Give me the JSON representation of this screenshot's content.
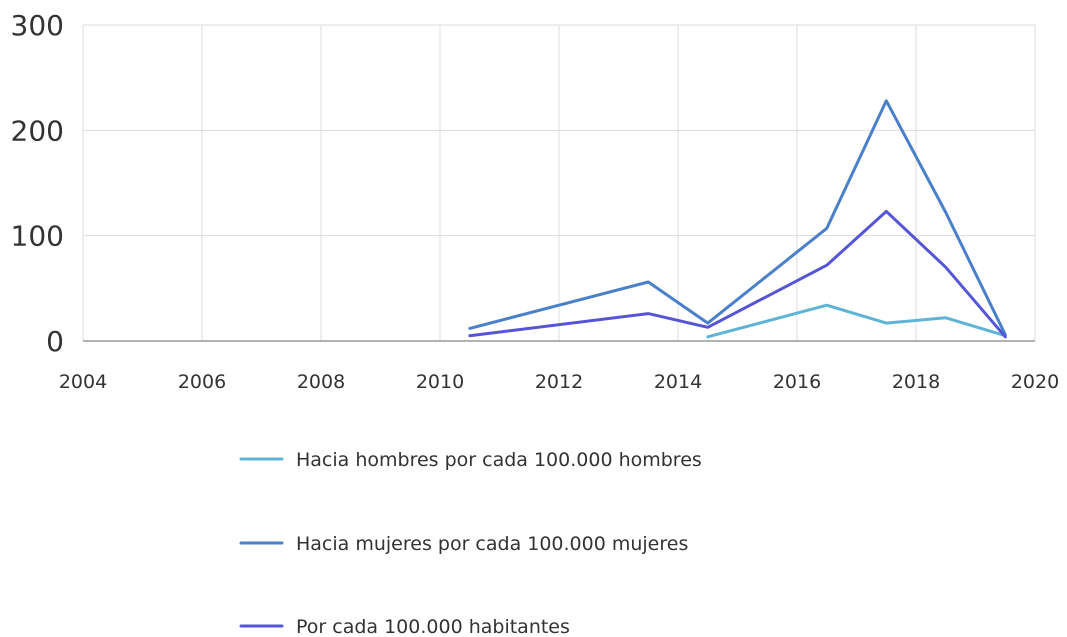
{
  "chart_data": {
    "type": "line",
    "title": "",
    "xlabel": "",
    "ylabel": "",
    "xlim": [
      2004,
      2020
    ],
    "ylim": [
      0,
      300
    ],
    "x_ticks": [
      "2004",
      "2006",
      "2008",
      "2010",
      "2012",
      "2014",
      "2016",
      "2018",
      "2020"
    ],
    "y_ticks": [
      "0",
      "100",
      "200",
      "300"
    ],
    "grid": true,
    "legend_position": "bottom",
    "series": [
      {
        "name": "Hacia hombres por cada 100.000 hombres",
        "color": "#5fb4d6",
        "points": [
          [
            2014.5,
            4
          ],
          [
            2016.5,
            34
          ],
          [
            2017.5,
            17
          ],
          [
            2018.5,
            22
          ],
          [
            2019.5,
            5
          ]
        ]
      },
      {
        "name": "Hacia mujeres por cada 100.000 mujeres",
        "color": "#4a7fc9",
        "points": [
          [
            2010.5,
            12
          ],
          [
            2013.5,
            56
          ],
          [
            2014.5,
            17
          ],
          [
            2016.5,
            107
          ],
          [
            2017.5,
            228
          ],
          [
            2018.5,
            122
          ],
          [
            2019.5,
            6
          ]
        ]
      },
      {
        "name": "Por cada 100.000 habitantes",
        "color": "#5555d6",
        "points": [
          [
            2010.5,
            5
          ],
          [
            2013.5,
            26
          ],
          [
            2014.5,
            13
          ],
          [
            2016.5,
            72
          ],
          [
            2017.5,
            123
          ],
          [
            2018.5,
            70
          ],
          [
            2019.5,
            4
          ]
        ]
      }
    ]
  }
}
